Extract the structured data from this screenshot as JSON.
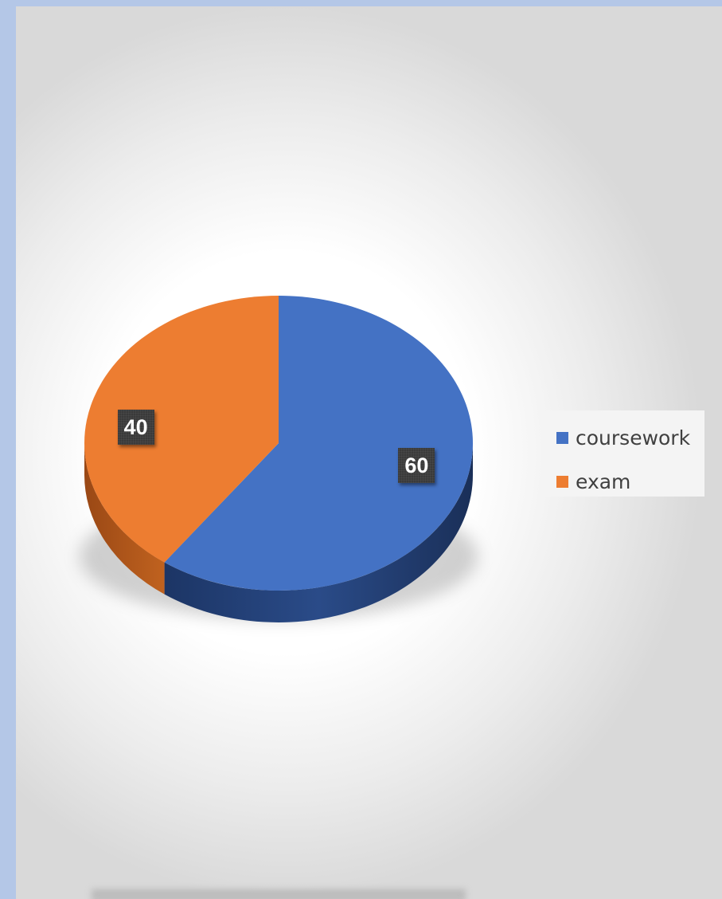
{
  "chart_data": {
    "type": "pie",
    "title": "",
    "categories": [
      "coursework",
      "exam"
    ],
    "values": [
      60,
      40
    ],
    "data_labels": [
      "60",
      "40"
    ],
    "colors": [
      "#4472c4",
      "#ed7d31"
    ],
    "side_colors": [
      "#203864",
      "#a9531a"
    ],
    "style": "3d-pie",
    "legend_position": "right"
  },
  "legend": {
    "items": [
      {
        "label": "coursework",
        "color": "#4472c4"
      },
      {
        "label": "exam",
        "color": "#ed7d31"
      }
    ]
  }
}
